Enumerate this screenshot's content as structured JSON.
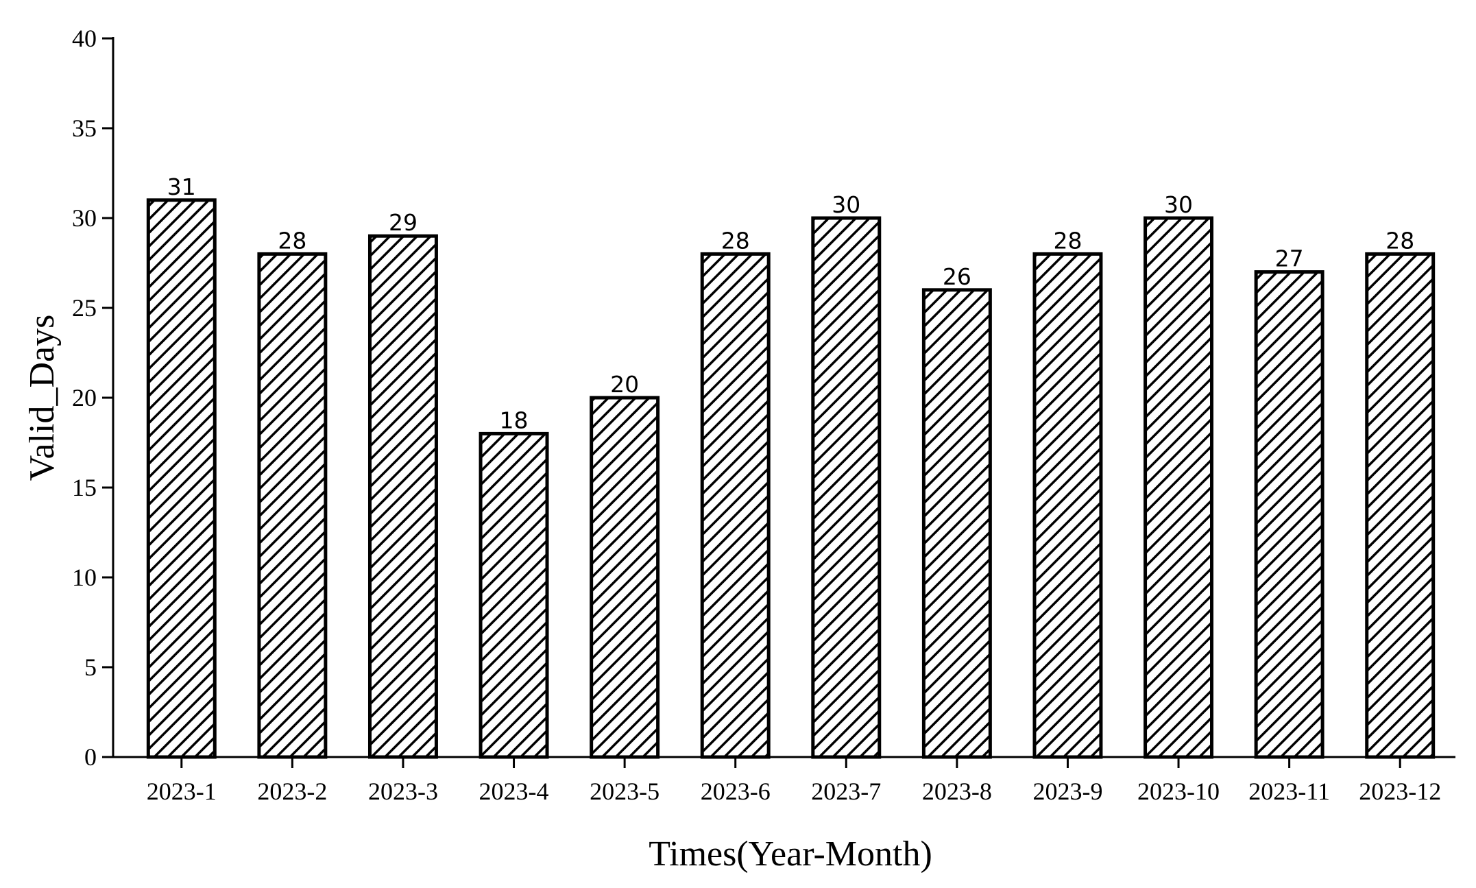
{
  "chart_data": {
    "type": "bar",
    "x_label": "Times(Year-Month)",
    "y_label": "Valid_Days",
    "categories": [
      "2023-1",
      "2023-2",
      "2023-3",
      "2023-4",
      "2023-5",
      "2023-6",
      "2023-7",
      "2023-8",
      "2023-9",
      "2023-10",
      "2023-11",
      "2023-12"
    ],
    "values": [
      31,
      28,
      29,
      18,
      20,
      28,
      30,
      26,
      28,
      30,
      27,
      28
    ],
    "color": "#000000",
    "ylim": [
      0,
      40
    ],
    "yticks": [
      0,
      5,
      10,
      15,
      20,
      25,
      30,
      35,
      40
    ],
    "grid": false
  }
}
